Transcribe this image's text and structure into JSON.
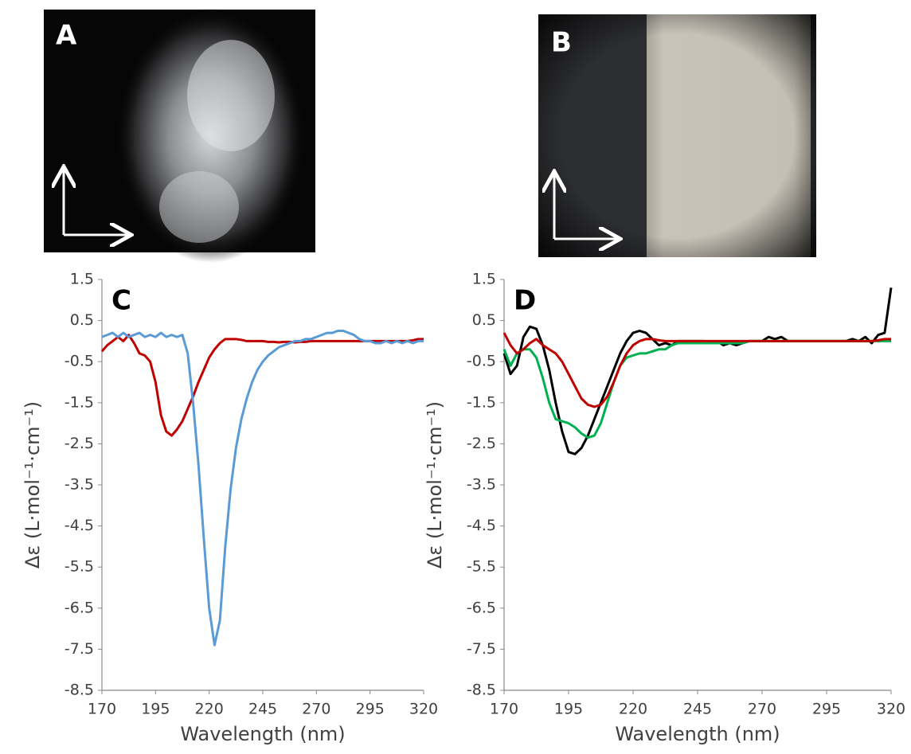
{
  "images": [
    {
      "label": "A"
    },
    {
      "label": "B"
    }
  ],
  "chart_data": [
    {
      "type": "line",
      "panel_label": "C",
      "x_label": "Wavelength (nm)",
      "y_label": "Δε (L·mol⁻¹·cm⁻¹)",
      "x": [
        170,
        172.5,
        175,
        177.5,
        180,
        182.5,
        185,
        187.5,
        190,
        192.5,
        195,
        197.5,
        200,
        202.5,
        205,
        207.5,
        210,
        212.5,
        215,
        217.5,
        220,
        222.5,
        225,
        227.5,
        230,
        232.5,
        235,
        237.5,
        240,
        242.5,
        245,
        247.5,
        250,
        252.5,
        255,
        257.5,
        260,
        262.5,
        265,
        267.5,
        270,
        272.5,
        275,
        277.5,
        280,
        282.5,
        285,
        287.5,
        290,
        292.5,
        295,
        297.5,
        300,
        302.5,
        305,
        307.5,
        310,
        312.5,
        315,
        317.5,
        320
      ],
      "series": [
        {
          "color": "#c00000",
          "values": [
            -0.25,
            -0.1,
            0,
            0.1,
            0,
            0.15,
            -0.05,
            -0.3,
            -0.35,
            -0.5,
            -1.0,
            -1.8,
            -2.2,
            -2.3,
            -2.15,
            -1.95,
            -1.65,
            -1.35,
            -1.0,
            -0.7,
            -0.4,
            -0.2,
            -0.05,
            0.05,
            0.05,
            0.05,
            0.03,
            0,
            0,
            0,
            0,
            -0.02,
            -0.02,
            -0.03,
            -0.02,
            -0.02,
            -0.03,
            -0.02,
            -0.02,
            0,
            0,
            0,
            0,
            0,
            0,
            0,
            0,
            0,
            0,
            0,
            0,
            0,
            0,
            0,
            0,
            0,
            0,
            0,
            0.02,
            0.05,
            0.05
          ]
        },
        {
          "color": "#5b9bd5",
          "values": [
            0.1,
            0.15,
            0.2,
            0.1,
            0.2,
            0.1,
            0.15,
            0.2,
            0.1,
            0.15,
            0.1,
            0.2,
            0.1,
            0.15,
            0.1,
            0.15,
            -0.3,
            -1.5,
            -3.0,
            -4.8,
            -6.5,
            -7.4,
            -6.8,
            -5.0,
            -3.6,
            -2.6,
            -1.9,
            -1.4,
            -1.0,
            -0.7,
            -0.5,
            -0.35,
            -0.25,
            -0.15,
            -0.1,
            -0.05,
            0,
            0,
            0.05,
            0.05,
            0.1,
            0.15,
            0.2,
            0.2,
            0.25,
            0.25,
            0.2,
            0.15,
            0.05,
            0,
            0,
            -0.05,
            -0.05,
            0,
            -0.05,
            0,
            -0.05,
            0,
            -0.05,
            0,
            0
          ]
        }
      ],
      "xlim": [
        170,
        320
      ],
      "xticks": [
        170,
        195,
        220,
        245,
        270,
        295,
        320
      ],
      "ylim": [
        -8.5,
        1.5
      ],
      "yticks": [
        1.5,
        0.5,
        -0.5,
        -1.5,
        -2.5,
        -3.5,
        -4.5,
        -5.5,
        -6.5,
        -7.5,
        -8.5
      ]
    },
    {
      "type": "line",
      "panel_label": "D",
      "x_label": "Wavelength (nm)",
      "y_label": "Δε (L·mol⁻¹·cm⁻¹)",
      "x": [
        170,
        172.5,
        175,
        177.5,
        180,
        182.5,
        185,
        187.5,
        190,
        192.5,
        195,
        197.5,
        200,
        202.5,
        205,
        207.5,
        210,
        212.5,
        215,
        217.5,
        220,
        222.5,
        225,
        227.5,
        230,
        232.5,
        235,
        237.5,
        240,
        242.5,
        245,
        247.5,
        250,
        252.5,
        255,
        257.5,
        260,
        262.5,
        265,
        267.5,
        270,
        272.5,
        275,
        277.5,
        280,
        282.5,
        285,
        287.5,
        290,
        292.5,
        295,
        297.5,
        300,
        302.5,
        305,
        307.5,
        310,
        312.5,
        315,
        317.5,
        320
      ],
      "series": [
        {
          "color": "#000000",
          "values": [
            -0.3,
            -0.8,
            -0.6,
            0.1,
            0.35,
            0.3,
            -0.1,
            -0.7,
            -1.5,
            -2.2,
            -2.7,
            -2.75,
            -2.6,
            -2.3,
            -1.9,
            -1.5,
            -1.1,
            -0.7,
            -0.3,
            0.0,
            0.2,
            0.25,
            0.2,
            0.05,
            -0.1,
            -0.05,
            -0.1,
            0,
            0,
            0,
            0,
            0,
            -0.05,
            0,
            -0.1,
            -0.05,
            -0.1,
            -0.05,
            0,
            0,
            0,
            0.1,
            0.05,
            0.1,
            0,
            0,
            0,
            0,
            0,
            0,
            0,
            0,
            0,
            0,
            0.05,
            0,
            0.1,
            -0.05,
            0.15,
            0.2,
            1.3
          ]
        },
        {
          "color": "#00b050",
          "values": [
            -0.2,
            -0.6,
            -0.3,
            -0.2,
            -0.2,
            -0.4,
            -0.9,
            -1.5,
            -1.9,
            -1.95,
            -2.0,
            -2.1,
            -2.25,
            -2.35,
            -2.3,
            -2.0,
            -1.5,
            -1.0,
            -0.6,
            -0.4,
            -0.35,
            -0.3,
            -0.3,
            -0.25,
            -0.2,
            -0.2,
            -0.1,
            -0.05,
            -0.05,
            -0.05,
            -0.05,
            -0.05,
            -0.05,
            -0.05,
            -0.05,
            -0.05,
            -0.05,
            -0.05,
            0,
            0,
            0,
            0,
            0,
            0,
            0,
            0,
            0,
            0,
            0,
            0,
            0,
            0,
            0,
            0,
            0,
            0,
            0,
            0,
            0,
            0,
            0
          ]
        },
        {
          "color": "#c00000",
          "values": [
            0.2,
            -0.1,
            -0.3,
            -0.2,
            -0.05,
            0.05,
            -0.1,
            -0.2,
            -0.3,
            -0.5,
            -0.8,
            -1.1,
            -1.4,
            -1.55,
            -1.6,
            -1.55,
            -1.35,
            -1.0,
            -0.6,
            -0.3,
            -0.1,
            0,
            0.05,
            0.05,
            0.02,
            0,
            0,
            0,
            0,
            0,
            0,
            0,
            0,
            0,
            0,
            0,
            0,
            0,
            0,
            0,
            0,
            0,
            0,
            0,
            0,
            0,
            0,
            0,
            0,
            0,
            0,
            0,
            0,
            0,
            0,
            0,
            0,
            0,
            0.02,
            0.05,
            0.05
          ]
        }
      ],
      "xlim": [
        170,
        320
      ],
      "xticks": [
        170,
        195,
        220,
        245,
        270,
        295,
        320
      ],
      "ylim": [
        -8.5,
        1.5
      ],
      "yticks": [
        1.5,
        0.5,
        -0.5,
        -1.5,
        -2.5,
        -3.5,
        -4.5,
        -5.5,
        -6.5,
        -7.5,
        -8.5
      ]
    }
  ]
}
